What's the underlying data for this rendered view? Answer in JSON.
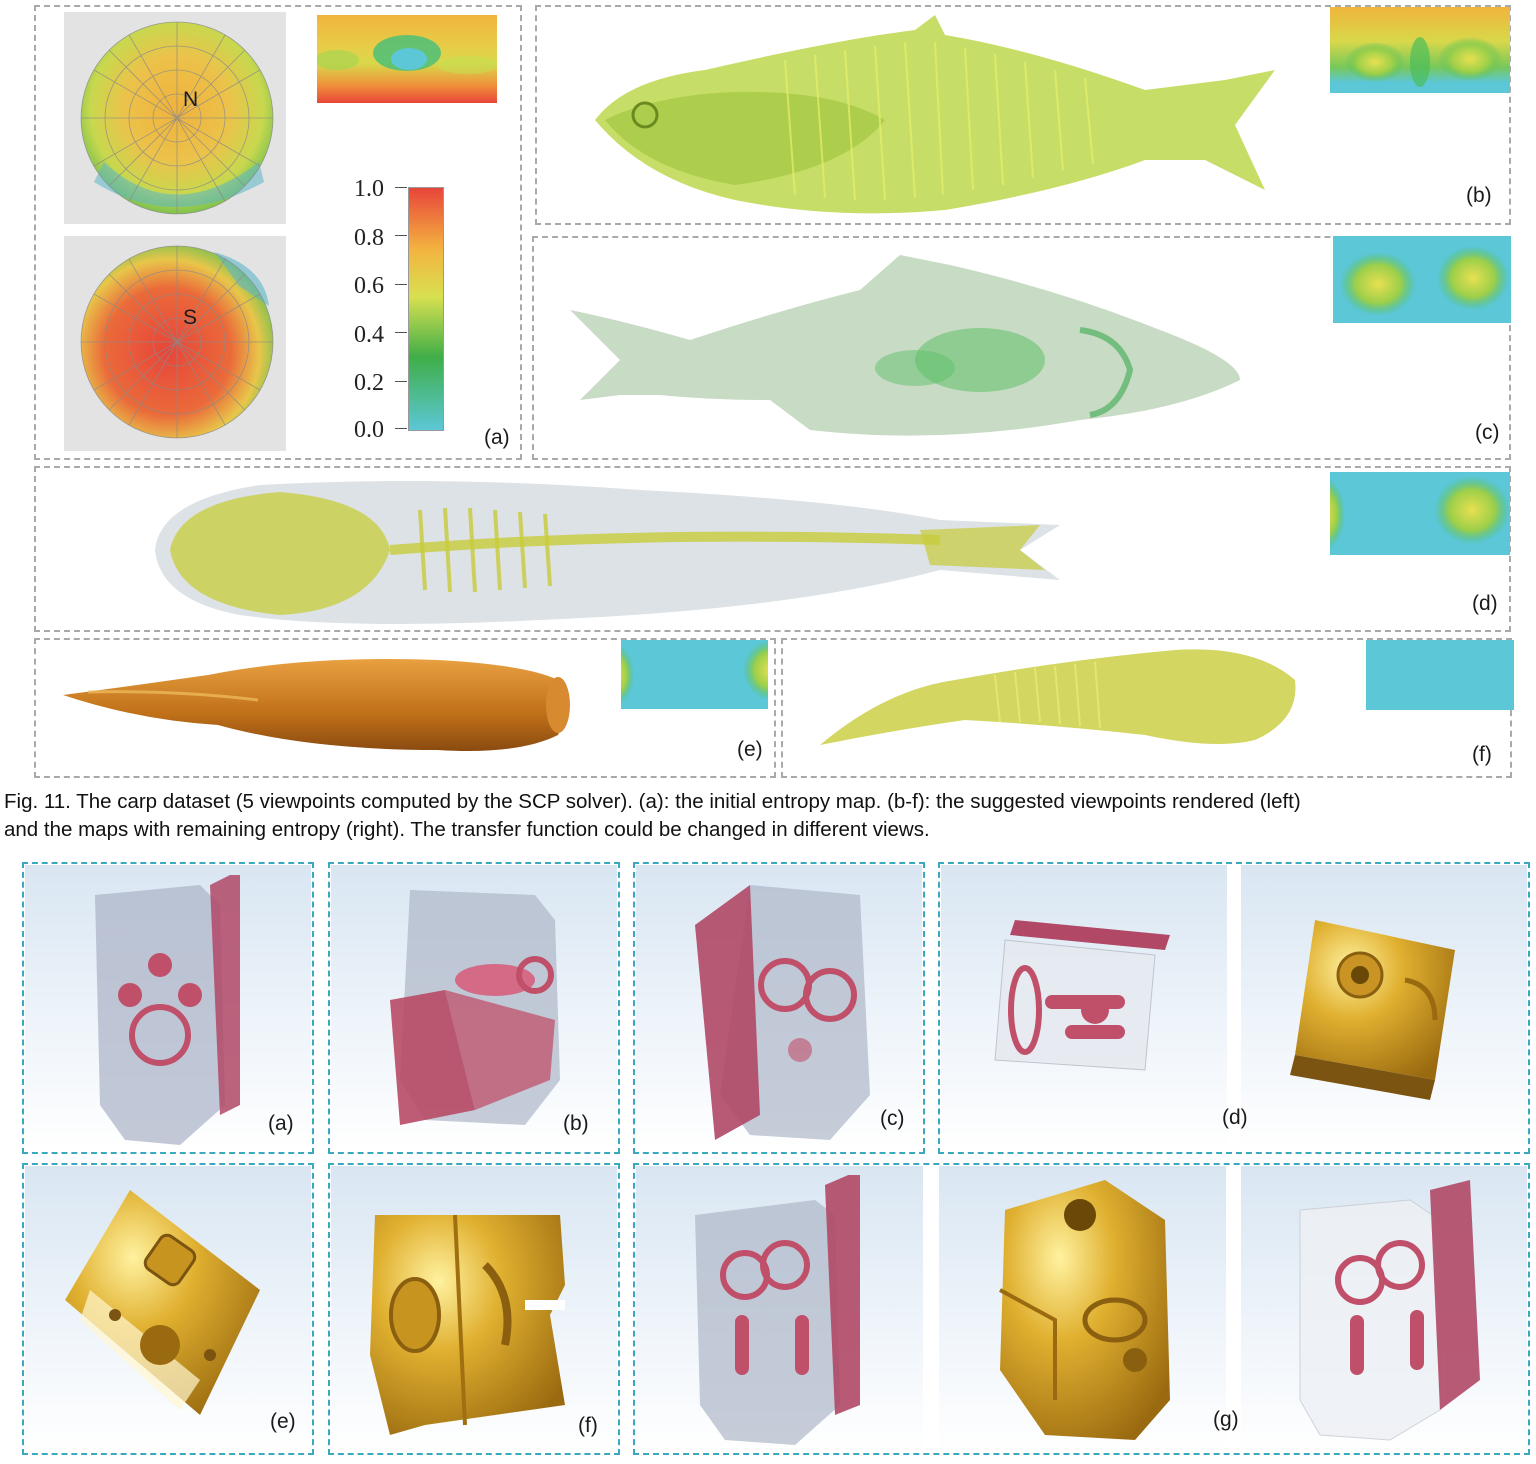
{
  "figure11": {
    "panel_labels": [
      "(a)",
      "(b)",
      "(c)",
      "(d)",
      "(e)",
      "(f)"
    ],
    "pole_north": "N",
    "pole_south": "S",
    "colorbar_ticks": [
      "1.0",
      "0.8",
      "0.6",
      "0.4",
      "0.2",
      "0.0"
    ],
    "caption_line1": "Fig. 11. The carp dataset (5 viewpoints computed by the SCP solver). (a): the initial entropy map. (b-f): the suggested viewpoints rendered (left)",
    "caption_line2": "and the maps with remaining entropy (right). The transfer function could be changed in different views."
  },
  "figure12": {
    "panel_labels": [
      "(a)",
      "(b)",
      "(c)",
      "(d)",
      "(e)",
      "(f)",
      "(g)"
    ]
  },
  "colors": {
    "frame_gray": "#a9a9a9",
    "frame_blue": "#3aa9c0",
    "entropy_high": "#e8453a",
    "entropy_mid": "#e8e04a",
    "entropy_low": "#5cc7d6",
    "fish_green": "#b8d24a",
    "fish_orange": "#c87a20",
    "part_pink": "#c0506a",
    "part_gold": "#d4a020"
  },
  "icons": [
    "polar-entropy-map-north-icon",
    "polar-entropy-map-south-icon",
    "colorbar-icon",
    "fish-render-icon",
    "engine-part-render-icon"
  ]
}
